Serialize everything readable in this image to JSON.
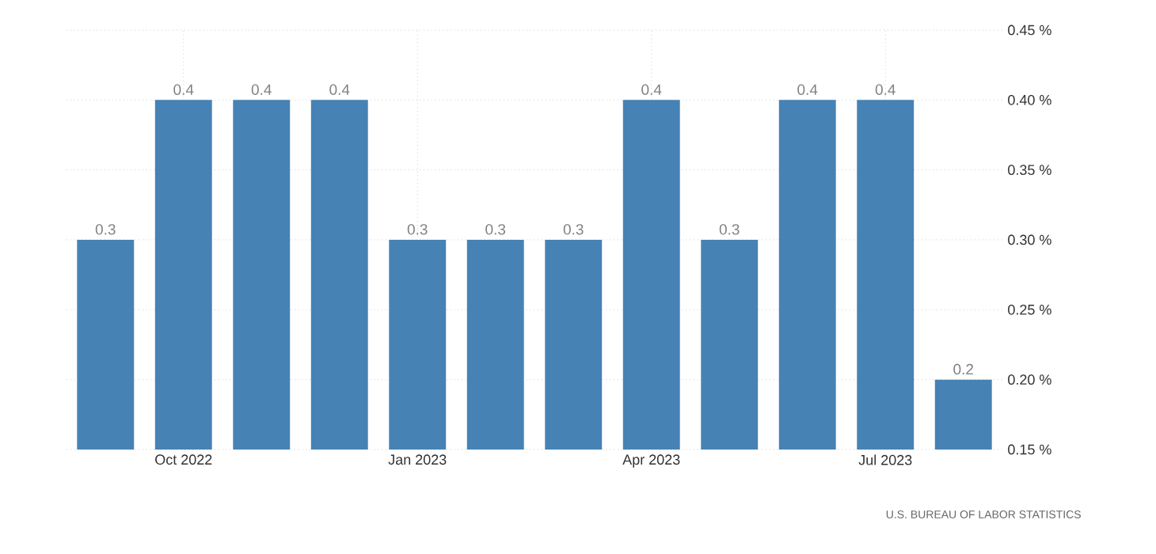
{
  "chart_data": {
    "type": "bar",
    "categories": [
      null,
      "Oct 2022",
      null,
      null,
      "Jan 2023",
      null,
      null,
      "Apr 2023",
      null,
      null,
      "Jul 2023",
      null
    ],
    "values": [
      0.3,
      0.4,
      0.4,
      0.4,
      0.3,
      0.3,
      0.3,
      0.4,
      0.3,
      0.4,
      0.4,
      0.2
    ],
    "color": "#4682b4",
    "ylim": [
      0.15,
      0.45
    ],
    "yticks": [
      {
        "value": 0.15,
        "label": "0.15 %"
      },
      {
        "value": 0.2,
        "label": "0.20 %"
      },
      {
        "value": 0.25,
        "label": "0.25 %"
      },
      {
        "value": 0.3,
        "label": "0.30 %"
      },
      {
        "value": 0.35,
        "label": "0.35 %"
      },
      {
        "value": 0.4,
        "label": "0.40 %"
      },
      {
        "value": 0.45,
        "label": "0.45 %"
      }
    ],
    "grid": true,
    "data_labels": true,
    "annotations": [
      "U.S. BUREAU OF LABOR STATISTICS"
    ]
  }
}
